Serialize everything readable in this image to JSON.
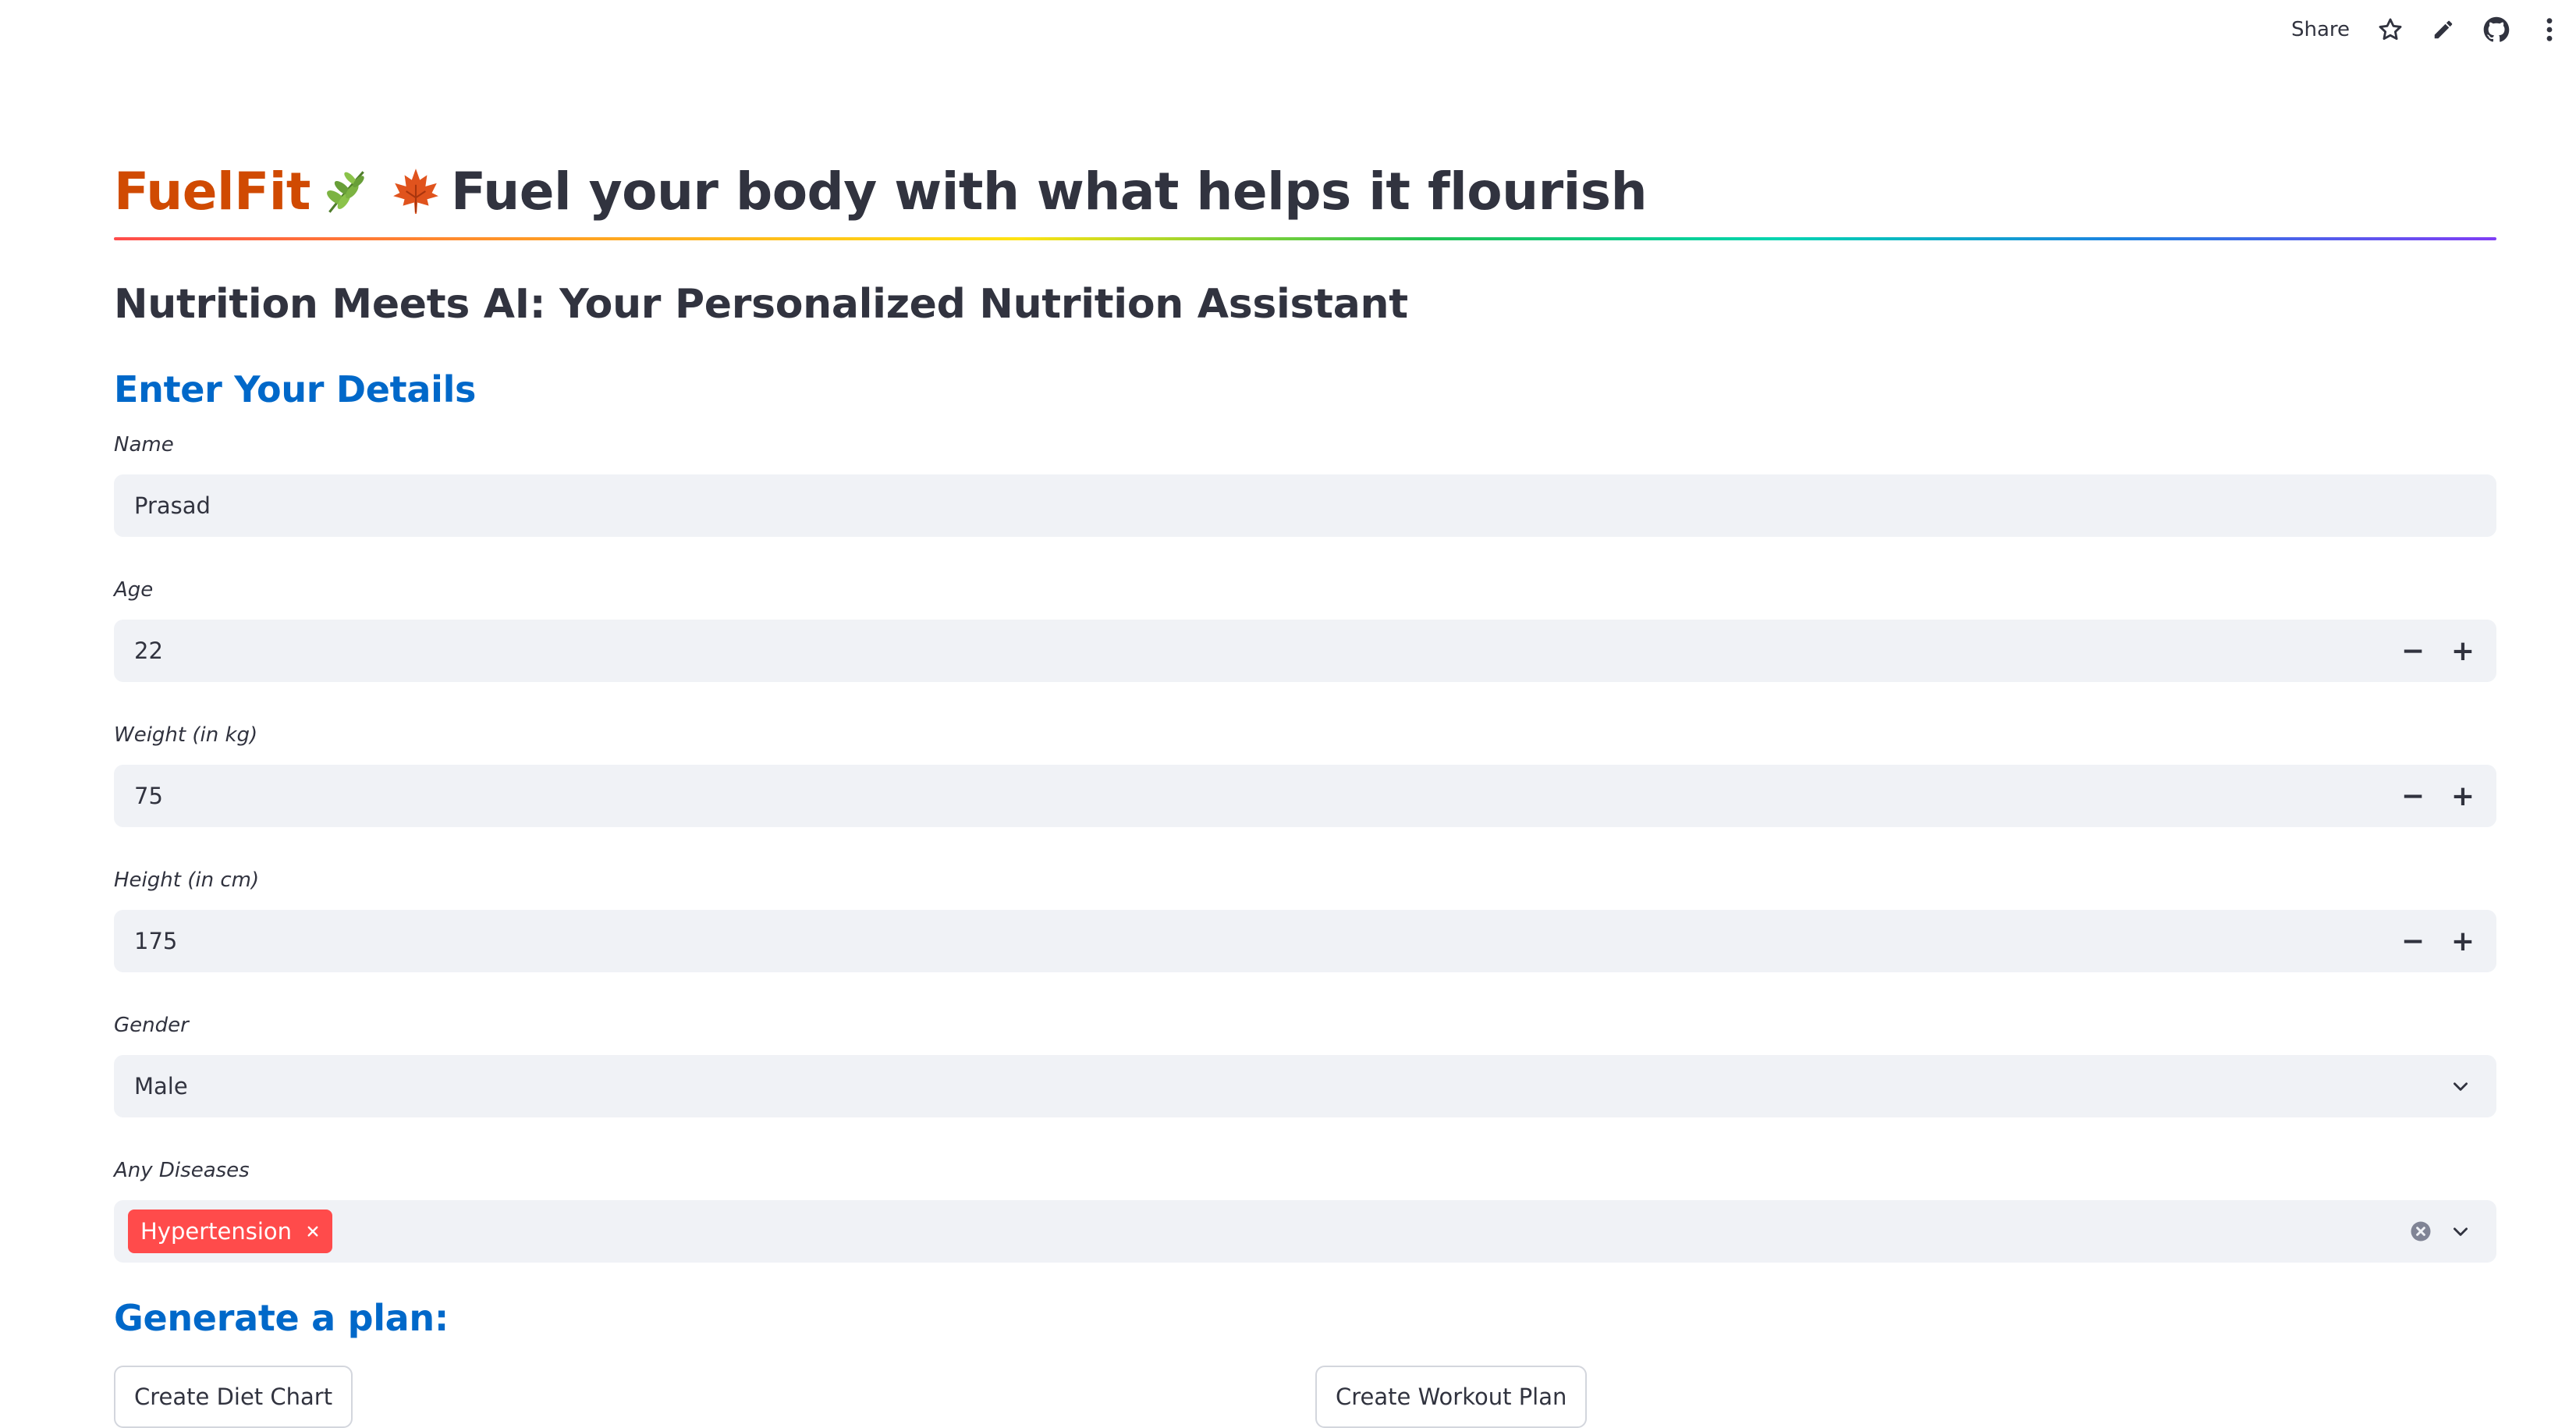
{
  "toolbar": {
    "share_label": "Share",
    "icons": [
      "star-icon",
      "edit-icon",
      "github-icon",
      "more-icon"
    ]
  },
  "header": {
    "brand": "FuelFit",
    "emojis": [
      "herb",
      "maple-leaf"
    ],
    "tagline": "Fuel your body with what helps it flourish"
  },
  "subheader": "Nutrition Meets AI: Your Personalized Nutrition Assistant",
  "details": {
    "heading": "Enter Your Details",
    "name": {
      "label": "Name",
      "value": "Prasad"
    },
    "age": {
      "label": "Age",
      "value": "22"
    },
    "weight": {
      "label": "Weight (in kg)",
      "value": "75"
    },
    "height": {
      "label": "Height (in cm)",
      "value": "175"
    },
    "gender": {
      "label": "Gender",
      "value": "Male"
    },
    "diseases": {
      "label": "Any Diseases",
      "selected": [
        "Hypertension"
      ]
    }
  },
  "plan": {
    "heading": "Generate a plan:",
    "diet_button": "Create Diet Chart",
    "workout_button": "Create Workout Plan"
  },
  "colors": {
    "brand": "#d04a02",
    "accent_blue": "#0068c9",
    "tag_red": "#ff4b4b",
    "input_bg": "#f0f2f6",
    "text": "#31333f"
  }
}
